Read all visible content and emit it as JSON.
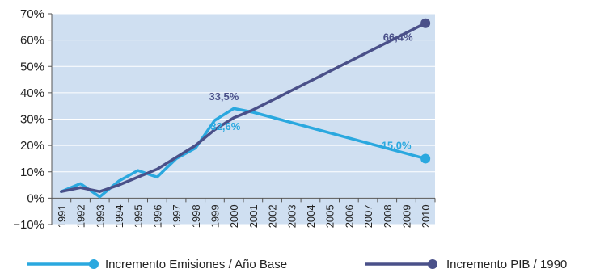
{
  "chart_data": {
    "type": "line",
    "title": "",
    "xlabel": "",
    "ylabel": "",
    "x": [
      "1991",
      "1992",
      "1993",
      "1994",
      "1995",
      "1996",
      "1997",
      "1998",
      "1999",
      "2000",
      "2001",
      "2002",
      "2003",
      "2004",
      "2005",
      "2006",
      "2007",
      "2008",
      "2009",
      "2010"
    ],
    "ylim": [
      -10,
      70
    ],
    "yticks": [
      -10,
      0,
      10,
      20,
      30,
      40,
      50,
      60,
      70
    ],
    "ytick_labels": [
      "−10%",
      "0%",
      "10%",
      "20%",
      "30%",
      "40%",
      "50%",
      "60%",
      "70%"
    ],
    "grid": true,
    "legend_position": "bottom",
    "plot_background": "#cfdff1",
    "series": [
      {
        "name": "Incremento Emisiones / Año Base",
        "color": "#2aa8df",
        "points": [
          {
            "x": "1991",
            "y": 2.5
          },
          {
            "x": "1992",
            "y": 5.5
          },
          {
            "x": "1993",
            "y": 0.5
          },
          {
            "x": "1994",
            "y": 6.5
          },
          {
            "x": "1995",
            "y": 10.5
          },
          {
            "x": "1996",
            "y": 8.0
          },
          {
            "x": "1997",
            "y": 15.0
          },
          {
            "x": "1998",
            "y": 19.0
          },
          {
            "x": "1999",
            "y": 29.5
          },
          {
            "x": "2000",
            "y": 34.0
          },
          {
            "x": "2001",
            "y": 32.6
          },
          {
            "x": "2010",
            "y": 15.0
          }
        ],
        "end_marker": true
      },
      {
        "name": "Incremento PIB / 1990",
        "color": "#4a5089",
        "points": [
          {
            "x": "1991",
            "y": 2.5
          },
          {
            "x": "1992",
            "y": 4.0
          },
          {
            "x": "1993",
            "y": 2.5
          },
          {
            "x": "1994",
            "y": 5.0
          },
          {
            "x": "1995",
            "y": 8.0
          },
          {
            "x": "1996",
            "y": 11.0
          },
          {
            "x": "1997",
            "y": 15.5
          },
          {
            "x": "1998",
            "y": 20.0
          },
          {
            "x": "1999",
            "y": 26.0
          },
          {
            "x": "2000",
            "y": 30.5
          },
          {
            "x": "2001",
            "y": 33.5
          },
          {
            "x": "2010",
            "y": 66.4
          }
        ],
        "end_marker": true
      }
    ],
    "annotations": [
      {
        "text": "33,5%",
        "series": 1,
        "x": "2001",
        "y": 33.5,
        "color": "#4a5089",
        "anchor": "above-left"
      },
      {
        "text": "66,4%",
        "series": 1,
        "x": "2010",
        "y": 66.4,
        "color": "#4a5089",
        "anchor": "below-left"
      },
      {
        "text": "32,6%",
        "series": 0,
        "x": "2001",
        "y": 32.6,
        "color": "#2aa8df",
        "anchor": "below-left"
      },
      {
        "text": "15,0%",
        "series": 0,
        "x": "2010",
        "y": 15.0,
        "color": "#2aa8df",
        "anchor": "above-left"
      }
    ]
  }
}
